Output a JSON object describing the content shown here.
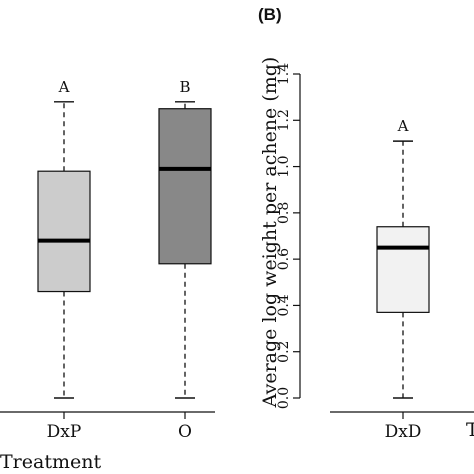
{
  "chart_data": [
    {
      "type": "box",
      "panel_label": "",
      "xlabel": "Treatment",
      "ylabel": "",
      "categories": [
        "DxP",
        "O"
      ],
      "letters": [
        "A",
        "B"
      ],
      "boxes": [
        {
          "name": "DxP",
          "whisker_low": 0.0,
          "q1": 0.46,
          "median": 0.68,
          "q3": 0.98,
          "whisker_high": 1.28,
          "fill": "#cccccc"
        },
        {
          "name": "O",
          "whisker_low": 0.0,
          "q1": 0.58,
          "median": 0.99,
          "q3": 1.25,
          "whisker_high": 1.28,
          "fill": "#888888"
        }
      ],
      "ylim": [
        0.0,
        1.4
      ]
    },
    {
      "type": "box",
      "panel_label": "(B)",
      "xlabel": "",
      "ylabel": "Average log weight per achene (mg)",
      "categories": [
        "DxD"
      ],
      "letters": [
        "A"
      ],
      "boxes": [
        {
          "name": "DxD",
          "whisker_low": 0.0,
          "q1": 0.37,
          "median": 0.65,
          "q3": 0.74,
          "whisker_high": 1.11,
          "fill": "#f2f2f2"
        }
      ],
      "ylim": [
        0.0,
        1.4
      ],
      "yticks": [
        "0.0",
        "0.2",
        "0.4",
        "0.6",
        "0.8",
        "1.0",
        "1.2",
        "1.4"
      ],
      "partial_label": "T"
    }
  ]
}
